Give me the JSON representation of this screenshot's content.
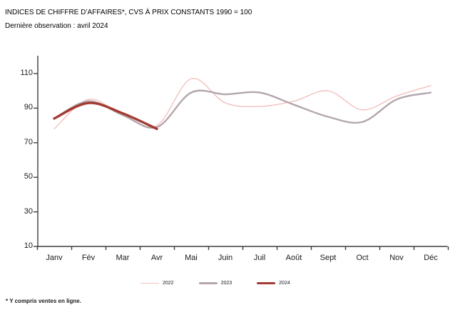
{
  "header": {
    "title": "INDICES DE CHIFFRE D’AFFAIRES*, CVS À PRIX CONSTANTS 1990 = 100",
    "subtitle": "Dernière observation : avril 2024"
  },
  "footnote": "* Y compris ventes en ligne.",
  "chart_data": {
    "type": "line",
    "title": "INDICES DE CHIFFRE D’AFFAIRES*, CVS À PRIX CONSTANTS 1990 = 100",
    "subtitle": "Dernière observation : avril 2024",
    "categories": [
      "Janv",
      "Fév",
      "Mar",
      "Avr",
      "Mai",
      "Juin",
      "Juil",
      "Août",
      "Sept",
      "Oct",
      "Nov",
      "Déc"
    ],
    "y_ticks": [
      "110",
      "90",
      "70",
      "50",
      "30",
      "10"
    ],
    "ylim": [
      10,
      120
    ],
    "grid": "off",
    "smoothed": true,
    "legend_position": "bottom",
    "axis_color": "#3f3f3f",
    "series": [
      {
        "name": "2022",
        "color": "#F2C1BE",
        "stroke_width": 1.4,
        "values": [
          78,
          95,
          86,
          80,
          107,
          93,
          91,
          94,
          100,
          89,
          97,
          103
        ]
      },
      {
        "name": "2023",
        "color": "#B3A6AC",
        "stroke_width": 2.4,
        "values": [
          84,
          94,
          86,
          79,
          99,
          98,
          99,
          92,
          85,
          82,
          95,
          99
        ]
      },
      {
        "name": "2024",
        "color": "#A33B33",
        "stroke_width": 3.4,
        "values": [
          84,
          93,
          87,
          78
        ]
      }
    ]
  }
}
